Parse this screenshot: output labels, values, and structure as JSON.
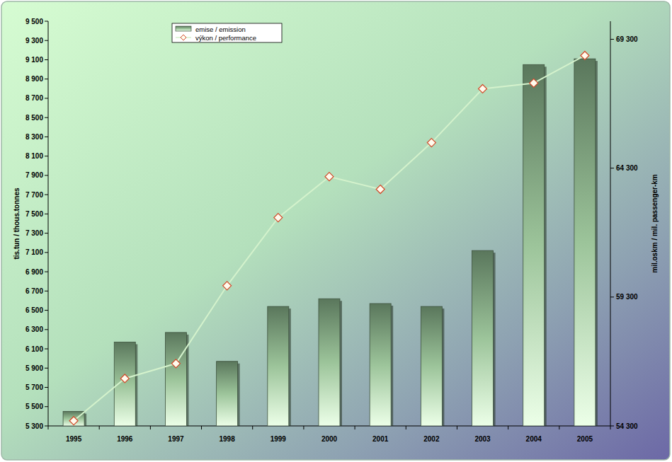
{
  "chart_data": {
    "type": "bar",
    "categories": [
      "1995",
      "1996",
      "1997",
      "1998",
      "1999",
      "2000",
      "2001",
      "2002",
      "2003",
      "2004",
      "2005"
    ],
    "series": [
      {
        "name": "emise / emission",
        "type": "bar",
        "color": "#5a775c",
        "values": [
          5450,
          6170,
          6270,
          5970,
          6540,
          6620,
          6570,
          6540,
          7120,
          9050,
          9110
        ]
      },
      {
        "name": "výkon / performance",
        "type": "line",
        "axis": "y2",
        "color": "#d4f2cc",
        "marker": "diamond",
        "values": [
          54500,
          56140,
          56720,
          59740,
          62380,
          63970,
          63480,
          65290,
          67380,
          67600,
          68670
        ]
      }
    ],
    "ylabel": "tis.tun / thous.tonnes",
    "y2label": "mil.oskm / mil. passenger-km",
    "ylim": [
      5300,
      9500
    ],
    "yticks": [
      {
        "value": 5300,
        "label": "5 300"
      },
      {
        "value": 5500,
        "label": "5 500"
      },
      {
        "value": 5700,
        "label": "5 700"
      },
      {
        "value": 5900,
        "label": "5 900"
      },
      {
        "value": 6100,
        "label": "6 100"
      },
      {
        "value": 6300,
        "label": "6 300"
      },
      {
        "value": 6500,
        "label": "6 500"
      },
      {
        "value": 6700,
        "label": "6 700"
      },
      {
        "value": 6900,
        "label": "6 900"
      },
      {
        "value": 7100,
        "label": "7 100"
      },
      {
        "value": 7300,
        "label": "7 300"
      },
      {
        "value": 7500,
        "label": "7 500"
      },
      {
        "value": 7700,
        "label": "7 700"
      },
      {
        "value": 7900,
        "label": "7 900"
      },
      {
        "value": 8100,
        "label": "8 100"
      },
      {
        "value": 8300,
        "label": "8 300"
      },
      {
        "value": 8500,
        "label": "8 500"
      },
      {
        "value": 8700,
        "label": "8 700"
      },
      {
        "value": 8900,
        "label": "8 900"
      },
      {
        "value": 9100,
        "label": "9 100"
      },
      {
        "value": 9300,
        "label": "9 300"
      },
      {
        "value": 9500,
        "label": "9 500"
      }
    ],
    "y2lim": [
      54300,
      70000
    ],
    "y2ticks": [
      {
        "value": 54300,
        "label": "54 300"
      },
      {
        "value": 59300,
        "label": "59 300"
      },
      {
        "value": 64300,
        "label": "64 300"
      },
      {
        "value": 69300,
        "label": "69 300"
      }
    ],
    "legend": "top-left",
    "grid": false
  }
}
